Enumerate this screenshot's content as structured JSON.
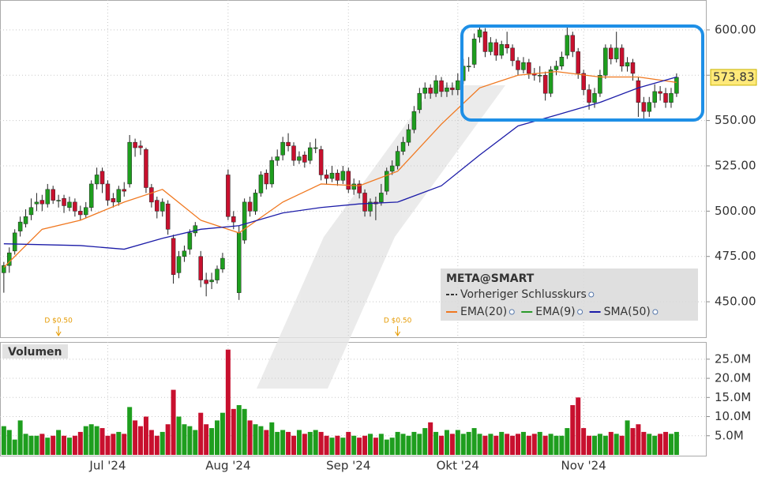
{
  "chart_data": {
    "type": "candlestick",
    "legend_title": "META@SMART",
    "volume_title": "Volumen",
    "up_color": "#1e9e1e",
    "down_color": "#c8102e",
    "grid": true,
    "ylim": [
      430,
      616.5
    ],
    "yticks": [
      {
        "value": 450,
        "label": "450.00"
      },
      {
        "value": 475,
        "label": "475.00"
      },
      {
        "value": 500,
        "label": "500.00"
      },
      {
        "value": 525,
        "label": "525.00"
      },
      {
        "value": 550,
        "label": "550.00"
      },
      {
        "value": 575,
        "label": "575.00"
      },
      {
        "value": 600,
        "label": "600.00"
      }
    ],
    "vol_ylim": [
      0,
      29.5
    ],
    "vol_yticks": [
      {
        "value": 5,
        "label": "5.0M"
      },
      {
        "value": 10,
        "label": "10.0M"
      },
      {
        "value": 15,
        "label": "15.0M"
      },
      {
        "value": 20,
        "label": "20.0M"
      },
      {
        "value": 25,
        "label": "25.0M"
      }
    ],
    "xlim": [
      -0.7,
      128.5
    ],
    "xticks": [
      {
        "value": 19,
        "label": "Jul '24"
      },
      {
        "value": 41,
        "label": "Aug '24"
      },
      {
        "value": 63,
        "label": "Sep '24"
      },
      {
        "value": 83,
        "label": "Okt '24"
      },
      {
        "value": 106,
        "label": "Nov '24"
      }
    ],
    "open": [
      466,
      470,
      478,
      489,
      493,
      498,
      504,
      506,
      504,
      512,
      506,
      507,
      502,
      505,
      500,
      498,
      502,
      515,
      522,
      515,
      507,
      505,
      512,
      515,
      538,
      536,
      534,
      513,
      506,
      500,
      504,
      485,
      466,
      475,
      479,
      488,
      475,
      462,
      461,
      462,
      468,
      520,
      497,
      455,
      484,
      505,
      500,
      510,
      521,
      515,
      528,
      531,
      538,
      536,
      528,
      531,
      528,
      535,
      534,
      520,
      518,
      521,
      517,
      522,
      512,
      515,
      510,
      500,
      505,
      505,
      511,
      522,
      525,
      533,
      538,
      545,
      556,
      565,
      568,
      565,
      572,
      566,
      568,
      567,
      572,
      580,
      581,
      596,
      599,
      588,
      593,
      586,
      592,
      590,
      583,
      578,
      582,
      576,
      575,
      575,
      565,
      578,
      580,
      586,
      597,
      588,
      576,
      567,
      560,
      565,
      575,
      590,
      584,
      590,
      580,
      582,
      572,
      560,
      555,
      560,
      566,
      565,
      560,
      565
    ],
    "high": [
      472,
      480,
      490,
      497,
      501,
      507,
      510,
      509,
      515,
      514,
      509,
      509,
      508,
      507,
      503,
      505,
      517,
      524,
      524,
      517,
      510,
      514,
      516,
      542,
      540,
      539,
      535,
      515,
      508,
      507,
      506,
      487,
      478,
      481,
      490,
      494,
      478,
      466,
      466,
      470,
      477,
      523,
      500,
      492,
      507,
      508,
      512,
      522,
      523,
      530,
      534,
      541,
      543,
      538,
      533,
      533,
      538,
      540,
      536,
      523,
      525,
      523,
      525,
      524,
      518,
      517,
      512,
      507,
      508,
      515,
      524,
      528,
      536,
      541,
      548,
      558,
      568,
      571,
      570,
      575,
      574,
      571,
      571,
      576,
      584,
      585,
      598,
      603,
      601,
      596,
      595,
      594,
      599,
      592,
      585,
      585,
      584,
      579,
      580,
      577,
      580,
      583,
      588,
      602,
      599,
      590,
      578,
      570,
      568,
      578,
      592,
      592,
      599,
      592,
      585,
      584,
      574,
      563,
      563,
      570,
      569,
      568,
      568,
      576
    ],
    "low": [
      455,
      466,
      476,
      486,
      491,
      495,
      500,
      500,
      502,
      504,
      502,
      499,
      500,
      497,
      495,
      496,
      500,
      512,
      510,
      503,
      502,
      503,
      508,
      513,
      530,
      531,
      510,
      502,
      496,
      497,
      487,
      460,
      463,
      472,
      476,
      486,
      458,
      453,
      457,
      460,
      466,
      495,
      490,
      451,
      482,
      497,
      498,
      508,
      512,
      513,
      525,
      528,
      533,
      525,
      526,
      524,
      526,
      532,
      517,
      515,
      516,
      514,
      515,
      510,
      509,
      507,
      497,
      497,
      495,
      503,
      509,
      520,
      523,
      531,
      536,
      543,
      554,
      562,
      562,
      563,
      563,
      563,
      564,
      564,
      570,
      577,
      579,
      593,
      585,
      586,
      583,
      584,
      587,
      580,
      575,
      576,
      573,
      572,
      571,
      561,
      563,
      575,
      578,
      584,
      585,
      573,
      564,
      556,
      557,
      563,
      573,
      581,
      582,
      577,
      577,
      572,
      552,
      550,
      552,
      557,
      561,
      557,
      557,
      563
    ],
    "close": [
      470,
      477,
      488,
      494,
      497,
      502,
      505,
      504,
      512,
      506,
      506,
      503,
      505,
      500,
      498,
      502,
      515,
      520,
      515,
      506,
      505,
      512,
      511,
      538,
      535,
      535,
      513,
      505,
      500,
      505,
      490,
      465,
      475,
      478,
      488,
      492,
      462,
      460,
      462,
      468,
      474,
      497,
      494,
      488,
      505,
      500,
      510,
      520,
      515,
      528,
      530,
      538,
      536,
      528,
      530,
      527,
      535,
      535,
      520,
      518,
      521,
      517,
      522,
      512,
      515,
      510,
      500,
      505,
      504,
      510,
      522,
      525,
      533,
      538,
      545,
      555,
      565,
      568,
      565,
      572,
      566,
      568,
      567,
      572,
      580,
      580,
      595,
      600,
      588,
      593,
      586,
      592,
      590,
      583,
      578,
      582,
      576,
      575,
      575,
      565,
      578,
      580,
      585,
      597,
      588,
      576,
      567,
      560,
      565,
      575,
      590,
      584,
      590,
      580,
      582,
      576,
      560,
      555,
      560,
      566,
      565,
      560,
      565,
      573.83
    ],
    "volume": [
      7.5,
      6.5,
      4,
      9,
      5.5,
      5,
      5,
      5.5,
      4.5,
      5,
      6.5,
      5,
      4.5,
      5,
      6,
      7.5,
      8,
      7.5,
      7,
      5,
      5.5,
      6,
      5.5,
      12.5,
      9,
      7.5,
      10,
      6.5,
      5,
      6,
      8,
      17,
      10,
      8,
      7.5,
      6.5,
      11,
      8,
      7,
      9,
      11,
      27.5,
      12,
      13,
      12,
      9,
      8,
      7.5,
      6.5,
      8.5,
      6,
      6.5,
      6,
      5,
      6.5,
      5.5,
      6,
      6.5,
      6,
      5,
      4.5,
      5,
      4.5,
      6,
      5,
      4.5,
      5,
      5.5,
      4.5,
      5.5,
      4,
      4.5,
      6,
      5.5,
      5,
      6,
      5.5,
      7,
      8.5,
      6,
      5,
      6.5,
      5.5,
      6.5,
      5.5,
      6,
      7,
      5.5,
      5,
      5.5,
      5,
      6,
      5.5,
      5,
      5.5,
      6,
      5,
      5.5,
      6,
      5,
      5.5,
      5,
      5,
      7,
      13,
      15,
      7,
      5,
      5,
      5.5,
      5,
      6,
      5.5,
      5,
      9,
      7,
      8,
      6,
      5.5,
      5,
      5.5,
      6,
      5.5,
      6
    ],
    "series": [
      {
        "name": "Vorheriger Schlusskurs",
        "color": "#333333"
      },
      {
        "name": "EMA(20)",
        "color": "#f07820",
        "x": [
          0,
          7,
          14,
          22,
          29,
          36,
          43,
          51,
          58,
          65,
          72,
          80,
          87,
          94,
          101,
          109,
          116,
          123
        ],
        "values": [
          469,
          490,
          495,
          505,
          512,
          495,
          488,
          505,
          515,
          514,
          522,
          548,
          568,
          575,
          577,
          574,
          574,
          571
        ]
      },
      {
        "name": "EMA(9)",
        "color": "#2a9a2a"
      },
      {
        "name": "SMA(50)",
        "color": "#1c1ca8",
        "x": [
          0,
          14,
          22,
          29,
          36,
          43,
          51,
          58,
          65,
          72,
          80,
          87,
          94,
          101,
          109,
          116,
          123
        ],
        "values": [
          482,
          481,
          479,
          485,
          490,
          492,
          499,
          502,
          504,
          505,
          514,
          531,
          547,
          553,
          560,
          568,
          574
        ]
      }
    ],
    "dividends": [
      {
        "x": 10,
        "label": "D $0.50"
      },
      {
        "x": 72,
        "label": "D $0.50"
      }
    ]
  }
}
